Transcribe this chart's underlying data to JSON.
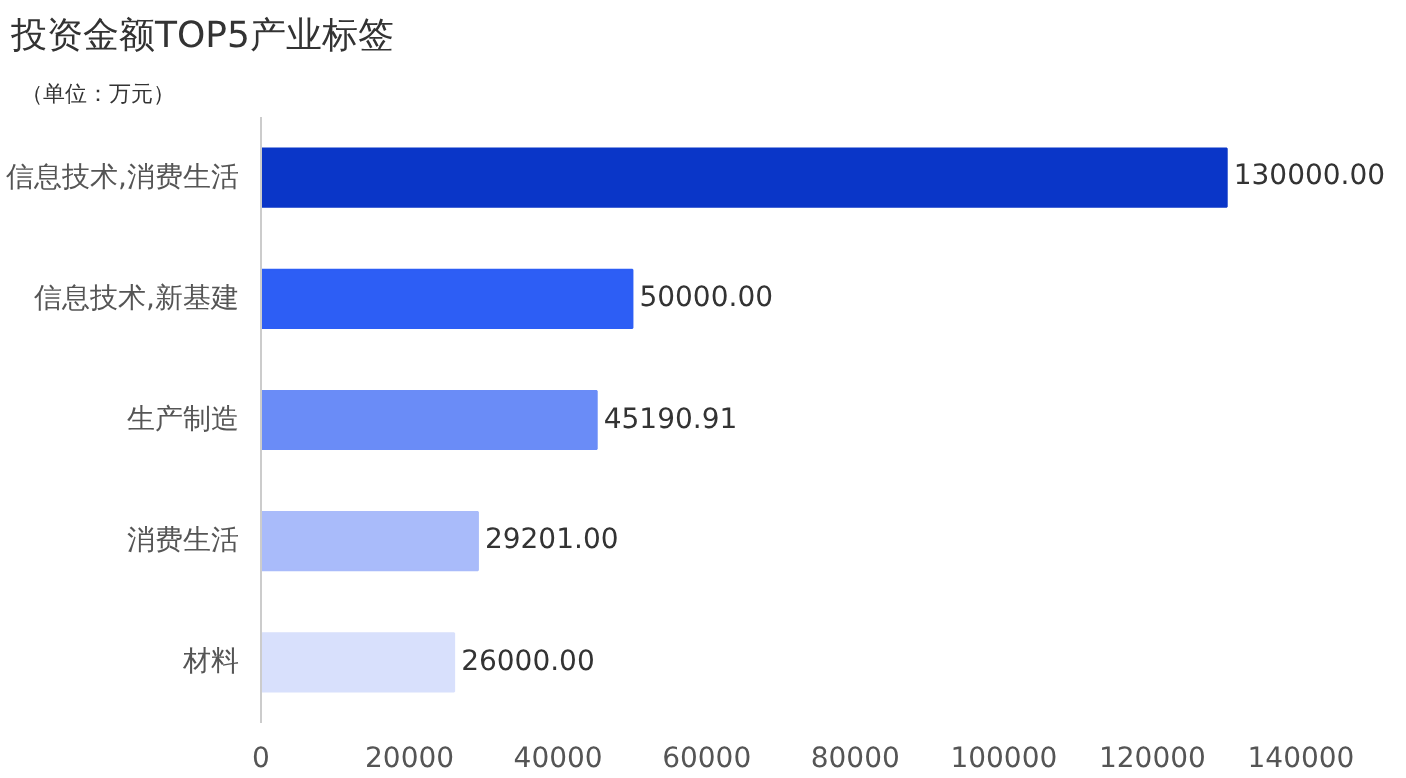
{
  "chart_data": {
    "type": "bar",
    "orientation": "horizontal",
    "title": "投资金额TOP5产业标签",
    "subtitle": "（单位：万元）",
    "categories": [
      "信息技术,消费生活",
      "信息技术,新基建",
      "生产制造",
      "消费生活",
      "材料"
    ],
    "values": [
      130000,
      50000,
      45190.91,
      29201,
      26000
    ],
    "colors": [
      "#0a36c8",
      "#2d5ef5",
      "#6a8cf7",
      "#a9bbfa",
      "#d8e0fc"
    ],
    "value_labels": [
      "130000.00",
      "50000.00",
      "45190.91",
      "29201.00",
      "26000.00"
    ],
    "xlim": [
      0,
      140000
    ],
    "xticks": [
      0,
      20000,
      40000,
      60000,
      80000,
      100000,
      120000,
      140000
    ],
    "grid": false
  }
}
